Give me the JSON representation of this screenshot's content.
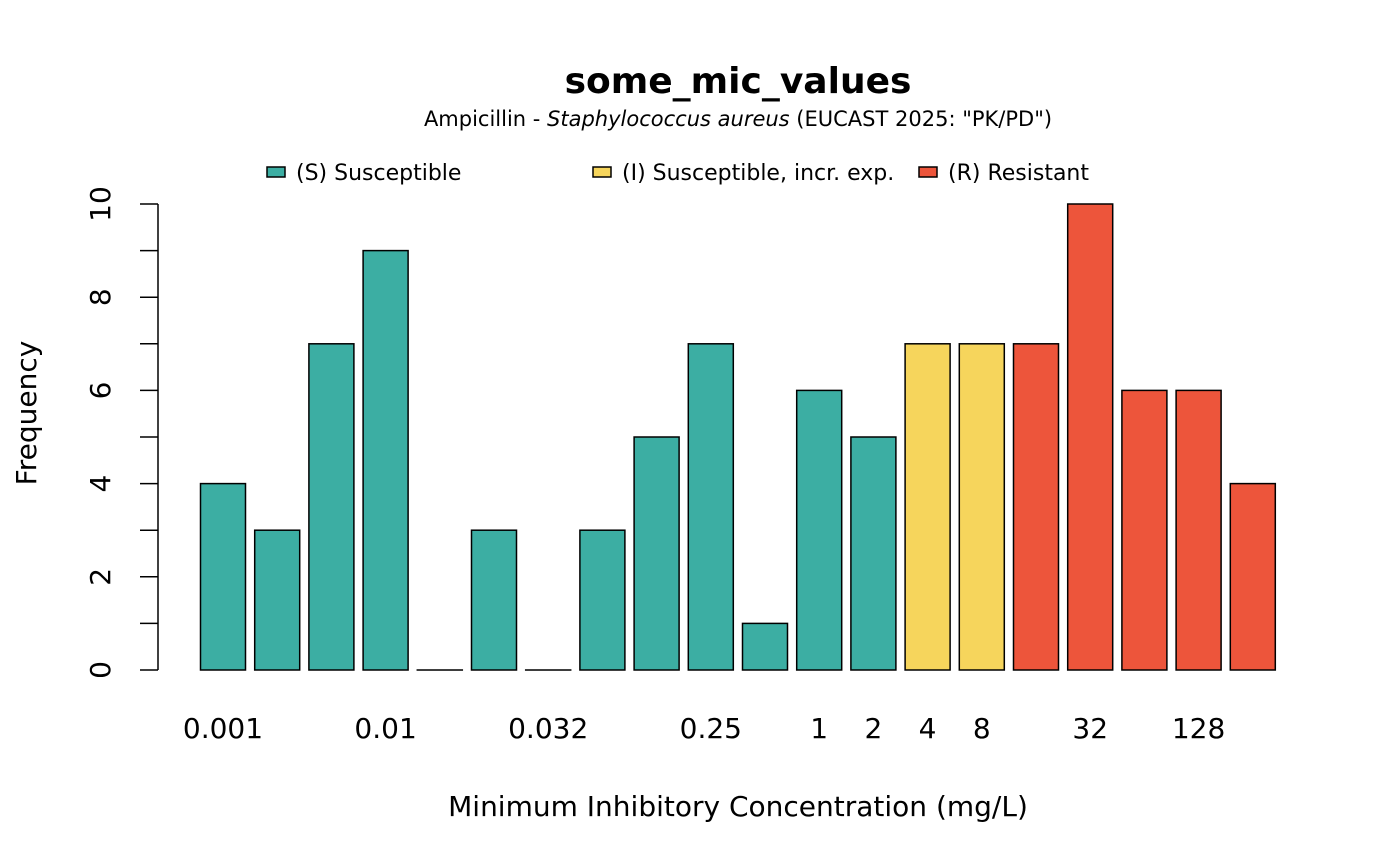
{
  "chart_data": {
    "type": "bar",
    "title": "some_mic_values",
    "subtitle": {
      "before": "Ampicillin - ",
      "italic": "Staphylococcus aureus",
      "after": " (EUCAST 2025: \"PK/PD\")"
    },
    "xlabel": "Minimum Inhibitory Concentration (mg/L)",
    "ylabel": "Frequency",
    "ylim": [
      0,
      10
    ],
    "yticks": [
      "0",
      "2",
      "4",
      "6",
      "8",
      "10"
    ],
    "legend_position": "top",
    "legend": [
      {
        "key": "S",
        "label": "(S) Susceptible",
        "color": "#3CAEA3"
      },
      {
        "key": "I",
        "label": "(I) Susceptible, incr. exp.",
        "color": "#F6D55C"
      },
      {
        "key": "R",
        "label": "(R) Resistant",
        "color": "#ED553B"
      }
    ],
    "bars": [
      {
        "label": "0.001",
        "value": 4,
        "class": "S"
      },
      {
        "label": "",
        "value": 3,
        "class": "S"
      },
      {
        "label": "",
        "value": 7,
        "class": "S"
      },
      {
        "label": "0.01",
        "value": 9,
        "class": "S"
      },
      {
        "label": "",
        "value": 0,
        "class": "S"
      },
      {
        "label": "",
        "value": 3,
        "class": "S"
      },
      {
        "label": "0.032",
        "value": 0,
        "class": "S"
      },
      {
        "label": "",
        "value": 3,
        "class": "S"
      },
      {
        "label": "",
        "value": 5,
        "class": "S"
      },
      {
        "label": "0.25",
        "value": 7,
        "class": "S"
      },
      {
        "label": "",
        "value": 1,
        "class": "S"
      },
      {
        "label": "1",
        "value": 6,
        "class": "S"
      },
      {
        "label": "2",
        "value": 5,
        "class": "S"
      },
      {
        "label": "4",
        "value": 7,
        "class": "I"
      },
      {
        "label": "8",
        "value": 7,
        "class": "I"
      },
      {
        "label": "",
        "value": 7,
        "class": "R"
      },
      {
        "label": "32",
        "value": 10,
        "class": "R"
      },
      {
        "label": "",
        "value": 6,
        "class": "R"
      },
      {
        "label": "128",
        "value": 6,
        "class": "R"
      },
      {
        "label": "",
        "value": 4,
        "class": "R"
      }
    ]
  }
}
